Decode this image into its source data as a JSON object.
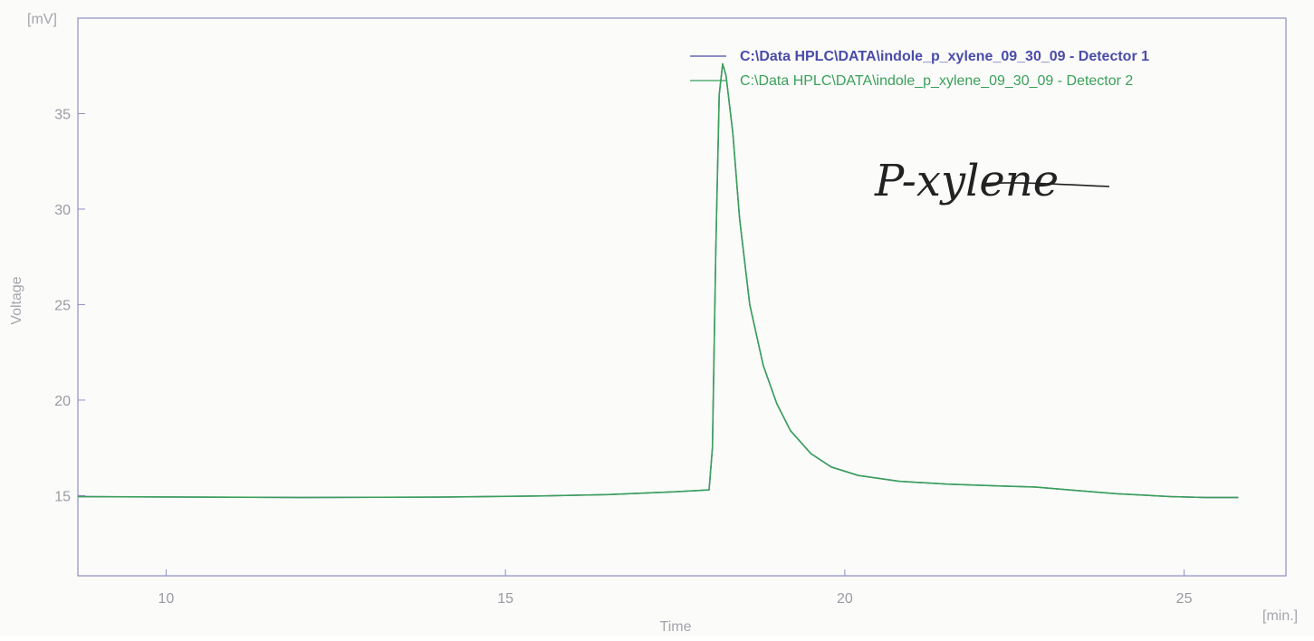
{
  "chart_data": {
    "type": "line",
    "y_unit_label": "[mV]",
    "x_unit_label": "[min.]",
    "xlabel": "Time",
    "ylabel": "Voltage",
    "xlim": [
      8.7,
      26.5
    ],
    "ylim": [
      10.8,
      40.0
    ],
    "x_ticks": [
      10,
      15,
      20,
      25
    ],
    "y_ticks": [
      15,
      20,
      25,
      30,
      35
    ],
    "grid": false,
    "legend_position": "top-right",
    "annotation": "P-xylene",
    "colors": {
      "axis": "#8e8ec4",
      "detector1": "#4b4ca8",
      "detector2": "#3aa05a",
      "ticks": "#9a9aa4",
      "annotation": "#222222"
    },
    "series": [
      {
        "name": "C:\\Data HPLC\\DATA\\indole_p_xylene_09_30_09 - Detector 1",
        "color": "#4b4ca8",
        "x": [
          8.7,
          10,
          12,
          14,
          15.5,
          16.5,
          17.5,
          18.0,
          18.05,
          18.1,
          18.15,
          18.2,
          18.25,
          18.35,
          18.45,
          18.6,
          18.8,
          19.0,
          19.2,
          19.5,
          19.8,
          20.2,
          20.8,
          21.5,
          22.3,
          22.8,
          23.3,
          24.0,
          24.8,
          25.3,
          25.8
        ],
        "y": [
          14.95,
          14.93,
          14.9,
          14.92,
          14.98,
          15.05,
          15.2,
          15.3,
          17.5,
          28.0,
          36.0,
          37.6,
          37.0,
          34.0,
          29.5,
          25.0,
          21.8,
          19.8,
          18.4,
          17.2,
          16.5,
          16.05,
          15.75,
          15.6,
          15.5,
          15.45,
          15.3,
          15.1,
          14.95,
          14.9,
          14.9
        ]
      },
      {
        "name": "C:\\Data HPLC\\DATA\\indole_p_xylene_09_30_09 - Detector 2",
        "color": "#3aa05a",
        "x": [
          8.7,
          10,
          12,
          14,
          15.5,
          16.5,
          17.5,
          18.0,
          18.05,
          18.1,
          18.15,
          18.2,
          18.25,
          18.35,
          18.45,
          18.6,
          18.8,
          19.0,
          19.2,
          19.5,
          19.8,
          20.2,
          20.8,
          21.5,
          22.3,
          22.8,
          23.3,
          24.0,
          24.8,
          25.3,
          25.8
        ],
        "y": [
          14.95,
          14.93,
          14.9,
          14.92,
          14.98,
          15.05,
          15.2,
          15.3,
          17.5,
          28.0,
          36.0,
          37.6,
          37.0,
          34.0,
          29.5,
          25.0,
          21.8,
          19.8,
          18.4,
          17.2,
          16.5,
          16.05,
          15.75,
          15.6,
          15.5,
          15.45,
          15.3,
          15.1,
          14.95,
          14.9,
          14.9
        ]
      }
    ]
  }
}
